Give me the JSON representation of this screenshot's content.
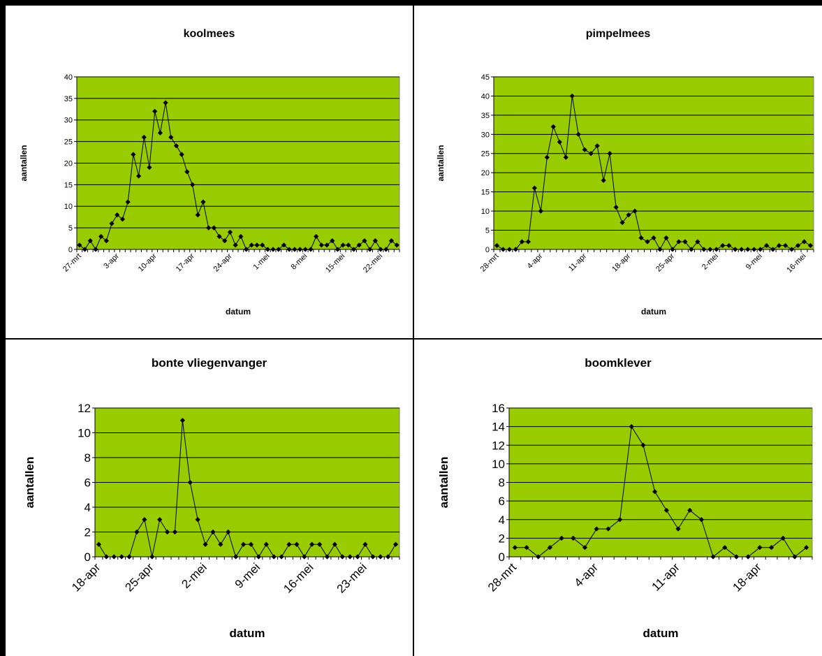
{
  "chart_data": [
    {
      "type": "line",
      "title": "koolmees",
      "xlabel": "datum",
      "ylabel": "aantallen",
      "ylim": [
        0,
        40
      ],
      "ytick_step": 5,
      "x_start": "27-mrt",
      "xtick_labels": [
        "27-mrt",
        "3-apr",
        "10-apr",
        "17-apr",
        "24-apr",
        "1-mei",
        "8-mei",
        "15-mei",
        "22-mei"
      ],
      "xtick_every": 7,
      "grid": true,
      "legend": "none",
      "plot_color": "#99cc00",
      "series": [
        {
          "values": [
            1,
            0,
            2,
            0,
            3,
            2,
            6,
            8,
            7,
            11,
            22,
            17,
            26,
            19,
            32,
            27,
            34,
            26,
            24,
            22,
            18,
            15,
            8,
            11,
            5,
            5,
            3,
            2,
            4,
            1,
            3,
            0,
            1,
            1,
            1,
            0,
            0,
            0,
            1,
            0,
            0,
            0,
            0,
            0,
            3,
            1,
            1,
            2,
            0,
            1,
            1,
            0,
            1,
            2,
            0,
            2,
            0,
            0,
            2,
            1
          ]
        }
      ]
    },
    {
      "type": "line",
      "title": "pimpelmees",
      "xlabel": "datum",
      "ylabel": "aantallen",
      "ylim": [
        0,
        45
      ],
      "ytick_step": 5,
      "x_start": "28-mrt",
      "xtick_labels": [
        "28-mrt",
        "4-apr",
        "11-apr",
        "18-apr",
        "25-apr",
        "2-mei",
        "9-mei",
        "16-mei"
      ],
      "xtick_every": 7,
      "grid": true,
      "legend": "none",
      "plot_color": "#99cc00",
      "series": [
        {
          "values": [
            1,
            0,
            0,
            0,
            2,
            2,
            16,
            10,
            24,
            32,
            28,
            24,
            40,
            30,
            26,
            25,
            27,
            18,
            25,
            11,
            7,
            9,
            10,
            3,
            2,
            3,
            0,
            3,
            0,
            2,
            2,
            0,
            2,
            0,
            0,
            0,
            1,
            1,
            0,
            0,
            0,
            0,
            0,
            1,
            0,
            1,
            1,
            0,
            1,
            2,
            1
          ]
        }
      ]
    },
    {
      "type": "line",
      "title": "bonte vliegenvanger",
      "xlabel": "datum",
      "ylabel": "aantallen",
      "ylim": [
        0,
        12
      ],
      "ytick_step": 2,
      "x_start": "18-apr",
      "xtick_labels": [
        "18-apr",
        "25-apr",
        "2-mei",
        "9-mei",
        "16-mei",
        "23-mei"
      ],
      "xtick_every": 7,
      "grid": true,
      "legend": "none",
      "plot_color": "#99cc00",
      "series": [
        {
          "values": [
            1,
            0,
            0,
            0,
            0,
            2,
            3,
            0,
            3,
            2,
            2,
            11,
            6,
            3,
            1,
            2,
            1,
            2,
            0,
            1,
            1,
            0,
            1,
            0,
            0,
            1,
            1,
            0,
            1,
            1,
            0,
            1,
            0,
            0,
            0,
            1,
            0,
            0,
            0,
            1
          ]
        }
      ]
    },
    {
      "type": "line",
      "title": "boomklever",
      "xlabel": "datum",
      "ylabel": "aantallen",
      "ylim": [
        0,
        16
      ],
      "ytick_step": 2,
      "x_start": "28-mrt",
      "xtick_labels": [
        "28-mrt",
        "4-apr",
        "11-apr",
        "18-apr"
      ],
      "xtick_every": 7,
      "grid": true,
      "legend": "none",
      "plot_color": "#99cc00",
      "series": [
        {
          "values": [
            1,
            1,
            0,
            1,
            2,
            2,
            1,
            3,
            3,
            4,
            14,
            12,
            7,
            5,
            3,
            5,
            4,
            0,
            1,
            0,
            0,
            1,
            1,
            2,
            0,
            1
          ]
        }
      ]
    }
  ]
}
